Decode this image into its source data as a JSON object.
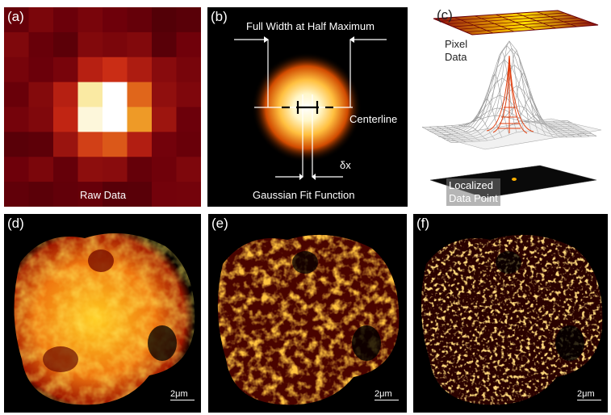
{
  "figure": {
    "panel_a": {
      "label": "(a)",
      "caption": "Raw Data"
    },
    "panel_b": {
      "label": "(b)",
      "fwhm_label": "Full Width at Half Maximum",
      "centerline_label": "Centerline",
      "delta_label": "δx",
      "fit_label": "Gaussian Fit Function"
    },
    "panel_c": {
      "label": "(c)",
      "pixel_label": "Pixel\nData",
      "point_label": "Localized\nData Point"
    },
    "panel_d": {
      "label": "(d)",
      "scale_label": "2μm"
    },
    "panel_e": {
      "label": "(e)",
      "scale_label": "2μm"
    },
    "panel_f": {
      "label": "(f)",
      "scale_label": "2μm"
    }
  },
  "colors": {
    "background": "#ffffff",
    "panel_black": "#000000",
    "hot_dark": "#5a0000",
    "hot_mid": "#c83000",
    "hot_bright": "#ffd000",
    "white": "#ffffff"
  }
}
